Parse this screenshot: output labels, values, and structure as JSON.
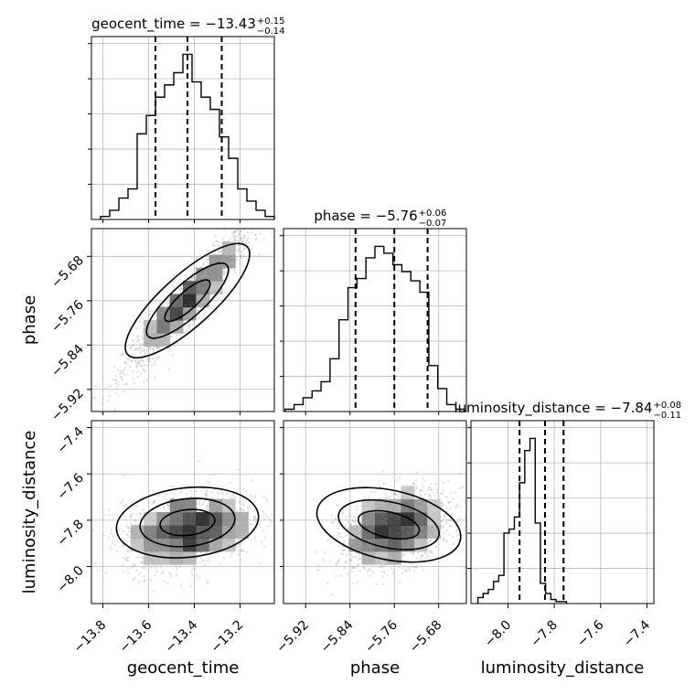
{
  "chart_data": {
    "type": "corner",
    "parameters": [
      "geocent_time",
      "phase",
      "luminosity_distance"
    ],
    "titles": [
      {
        "param": "geocent_time",
        "median": "−13.43",
        "plus": "+0.15",
        "minus": "−0.14"
      },
      {
        "param": "phase",
        "median": "−5.76",
        "plus": "+0.06",
        "minus": "−0.07"
      },
      {
        "param": "luminosity_distance",
        "median": "−7.84",
        "plus": "+0.08",
        "minus": "−0.11"
      }
    ],
    "ranges": {
      "geocent_time": [
        -13.85,
        -13.05
      ],
      "phase": [
        -5.96,
        -5.63
      ],
      "luminosity_distance": [
        -8.16,
        -7.37
      ]
    },
    "ticks": {
      "geocent_time": [
        "−13.8",
        "−13.6",
        "−13.4",
        "−13.2"
      ],
      "phase": [
        "−5.92",
        "−5.84",
        "−5.76",
        "−5.68"
      ],
      "luminosity_distance": [
        "−8.0",
        "−7.8",
        "−7.6",
        "−7.4"
      ]
    },
    "tick_values": {
      "geocent_time": [
        -13.8,
        -13.6,
        -13.4,
        -13.2
      ],
      "phase": [
        -5.92,
        -5.84,
        -5.76,
        -5.68
      ],
      "luminosity_distance": [
        -8.0,
        -7.8,
        -7.6,
        -7.4
      ]
    },
    "quantiles": {
      "geocent_time": [
        -13.57,
        -13.43,
        -13.28
      ],
      "phase": [
        -5.83,
        -5.76,
        -5.7
      ],
      "luminosity_distance": [
        -7.95,
        -7.84,
        -7.76
      ]
    },
    "histograms": {
      "geocent_time": {
        "edges_start": -13.81,
        "bin_width": 0.04,
        "counts": [
          1,
          3,
          7,
          10,
          28,
          34,
          40,
          44,
          48,
          54,
          45,
          40,
          36,
          27,
          20,
          10,
          6,
          3,
          1
        ]
      },
      "phase": {
        "edges_start": -5.957,
        "bin_width": 0.0162,
        "counts": [
          1,
          3,
          6,
          9,
          13,
          23,
          40,
          54,
          58,
          67,
          72,
          69,
          64,
          61,
          57,
          52,
          20,
          10,
          3,
          1
        ]
      },
      "luminosity_distance": {
        "edges_start": -8.13,
        "bin_width": 0.0225,
        "counts": [
          3,
          5,
          7,
          11,
          14,
          35,
          37,
          43,
          60,
          76,
          82,
          40,
          10,
          5,
          2,
          1,
          1
        ]
      }
    },
    "grid": true,
    "xlabel_bottom": [
      "geocent_time",
      "phase",
      "luminosity_distance"
    ],
    "ylabel_left": [
      "",
      "phase",
      "luminosity_distance"
    ],
    "color": "#000000"
  }
}
